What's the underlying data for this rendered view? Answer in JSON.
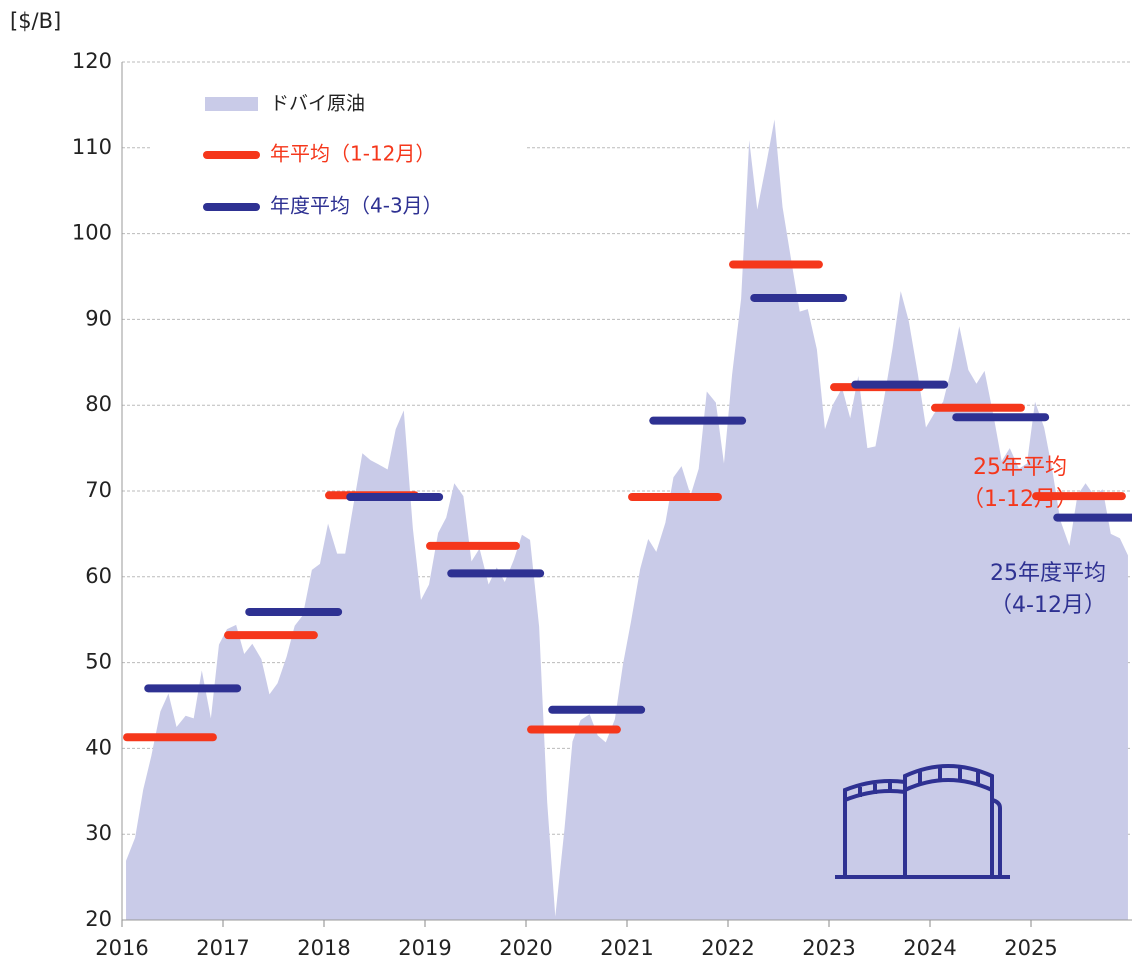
{
  "chart_data": {
    "type": "area",
    "y_label": "[$/B]",
    "xlim": [
      2016,
      2026
    ],
    "xticks": [
      2016,
      2017,
      2018,
      2019,
      2020,
      2021,
      2022,
      2023,
      2024,
      2025
    ],
    "ylim": [
      20,
      120
    ],
    "yticks": [
      20,
      30,
      40,
      50,
      60,
      70,
      80,
      90,
      100,
      110,
      120
    ],
    "grid": true,
    "x": [
      2016.04,
      2016.13,
      2016.21,
      2016.29,
      2016.38,
      2016.46,
      2016.54,
      2016.63,
      2016.71,
      2016.79,
      2016.88,
      2016.96,
      2017.04,
      2017.13,
      2017.21,
      2017.29,
      2017.38,
      2017.46,
      2017.54,
      2017.63,
      2017.71,
      2017.79,
      2017.88,
      2017.96,
      2018.04,
      2018.13,
      2018.21,
      2018.29,
      2018.38,
      2018.46,
      2018.54,
      2018.63,
      2018.71,
      2018.79,
      2018.88,
      2018.96,
      2019.04,
      2019.13,
      2019.21,
      2019.29,
      2019.38,
      2019.46,
      2019.54,
      2019.63,
      2019.71,
      2019.79,
      2019.88,
      2019.96,
      2020.04,
      2020.13,
      2020.21,
      2020.29,
      2020.38,
      2020.46,
      2020.54,
      2020.63,
      2020.71,
      2020.79,
      2020.88,
      2020.96,
      2021.04,
      2021.13,
      2021.21,
      2021.29,
      2021.38,
      2021.46,
      2021.54,
      2021.63,
      2021.71,
      2021.79,
      2021.88,
      2021.96,
      2022.04,
      2022.13,
      2022.21,
      2022.29,
      2022.38,
      2022.46,
      2022.54,
      2022.63,
      2022.71,
      2022.79,
      2022.88,
      2022.96,
      2023.04,
      2023.13,
      2023.21,
      2023.29,
      2023.38,
      2023.46,
      2023.54,
      2023.63,
      2023.71,
      2023.79,
      2023.88,
      2023.96,
      2024.04,
      2024.13,
      2024.21,
      2024.29,
      2024.38,
      2024.46,
      2024.54,
      2024.63,
      2024.71,
      2024.79,
      2024.88,
      2024.96,
      2025.04,
      2025.13,
      2025.21,
      2025.29,
      2025.38,
      2025.46,
      2025.54,
      2025.63,
      2025.71,
      2025.79,
      2025.88,
      2025.96
    ],
    "series": [
      {
        "name": "ドバイ原油",
        "color": "#c9cbe8",
        "values": [
          26.9,
          29.6,
          35.2,
          39.1,
          44.3,
          46.4,
          42.5,
          43.8,
          43.5,
          49.1,
          43.5,
          52.1,
          53.9,
          54.4,
          51.0,
          52.2,
          50.4,
          46.3,
          47.6,
          50.7,
          54.3,
          55.5,
          60.8,
          61.5,
          66.2,
          62.7,
          62.7,
          68.3,
          74.4,
          73.6,
          73.1,
          72.5,
          77.2,
          79.4,
          65.6,
          57.3,
          59.1,
          65.1,
          66.9,
          70.9,
          69.4,
          61.8,
          63.3,
          59.1,
          61.1,
          59.4,
          62.0,
          64.9,
          64.3,
          54.2,
          33.7,
          20.4,
          30.5,
          40.8,
          43.3,
          44.0,
          41.5,
          40.7,
          43.4,
          49.8,
          54.8,
          60.9,
          64.4,
          62.9,
          66.3,
          71.6,
          72.9,
          69.5,
          72.6,
          81.6,
          80.3,
          73.2,
          83.5,
          92.4,
          110.9,
          102.8,
          108.2,
          113.3,
          103.1,
          96.6,
          90.9,
          91.2,
          86.5,
          77.2,
          80.1,
          82.0,
          78.5,
          83.4,
          75.0,
          75.2,
          80.4,
          86.7,
          93.3,
          89.8,
          83.6,
          77.4,
          79.0,
          80.4,
          84.2,
          89.2,
          84.1,
          82.5,
          84.0,
          78.7,
          73.5,
          75.0,
          72.6,
          73.2,
          80.4,
          77.4,
          72.5,
          66.6,
          63.6,
          69.5,
          70.9,
          69.4,
          70.2,
          65.0,
          64.5,
          62.5
        ]
      }
    ],
    "averages": [
      {
        "name": "年平均（1-12月）",
        "color": "#f5371b",
        "years": [
          2016,
          2017,
          2018,
          2019,
          2020,
          2021,
          2022,
          2023,
          2024,
          2025
        ],
        "values": [
          41.3,
          53.2,
          69.5,
          63.6,
          42.2,
          69.3,
          96.4,
          82.1,
          79.7,
          69.4
        ]
      },
      {
        "name": "年度平均（4-3月）",
        "color": "#2e3192",
        "years": [
          2016,
          2017,
          2018,
          2019,
          2020,
          2021,
          2022,
          2023,
          2024,
          2025
        ],
        "values": [
          47.0,
          55.9,
          69.3,
          60.4,
          44.5,
          78.2,
          92.5,
          82.4,
          78.6,
          66.9
        ]
      }
    ],
    "annotations": [
      {
        "lines": [
          "25年平均",
          "（1-12月）"
        ],
        "color": "#f5371b"
      },
      {
        "lines": [
          "25年度平均",
          "（4-12月）"
        ],
        "color": "#2e3192"
      }
    ]
  }
}
